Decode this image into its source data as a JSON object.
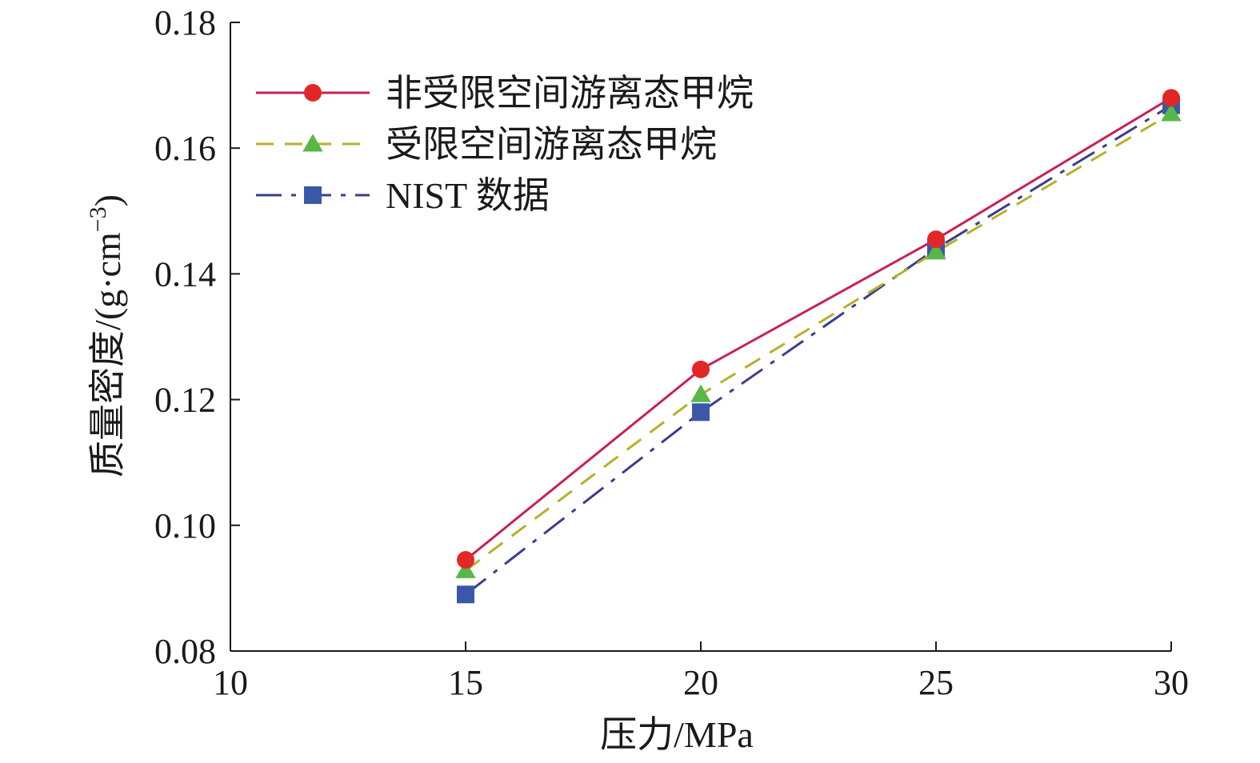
{
  "chart_data": {
    "type": "line",
    "xlabel": "压力/MPa",
    "ylabel_main": "质量密度/(g·cm",
    "ylabel_sup": "−3",
    "ylabel_close": ")",
    "xlim": [
      10,
      30
    ],
    "ylim": [
      0.08,
      0.18
    ],
    "xticks": [
      10,
      15,
      20,
      25,
      30
    ],
    "xtick_labels": [
      "10",
      "15",
      "20",
      "25",
      "30"
    ],
    "yticks": [
      0.08,
      0.1,
      0.12,
      0.14,
      0.16,
      0.18
    ],
    "ytick_labels": [
      "0.08",
      "0.10",
      "0.12",
      "0.14",
      "0.16",
      "0.18"
    ],
    "legend_position": "top-left",
    "series": [
      {
        "name": "非受限空间游离态甲烷",
        "x": [
          15,
          20,
          25,
          30
        ],
        "y": [
          0.0945,
          0.1248,
          0.1455,
          0.168
        ],
        "color": "#c8205a",
        "marker": "circle",
        "marker_color": "#e32726",
        "line_style": "solid"
      },
      {
        "name": "受限空间游离态甲烷",
        "x": [
          15,
          20,
          25,
          30
        ],
        "y": [
          0.0928,
          0.1208,
          0.1435,
          0.1655
        ],
        "color": "#b7b02a",
        "marker": "triangle",
        "marker_color": "#57b847",
        "line_style": "dash"
      },
      {
        "name": "NIST 数据",
        "x": [
          15,
          20,
          25,
          30
        ],
        "y": [
          0.089,
          0.118,
          0.144,
          0.1668
        ],
        "color": "#3a3e8c",
        "marker": "square",
        "marker_color": "#3b58a8",
        "line_style": "dashdot"
      }
    ]
  }
}
